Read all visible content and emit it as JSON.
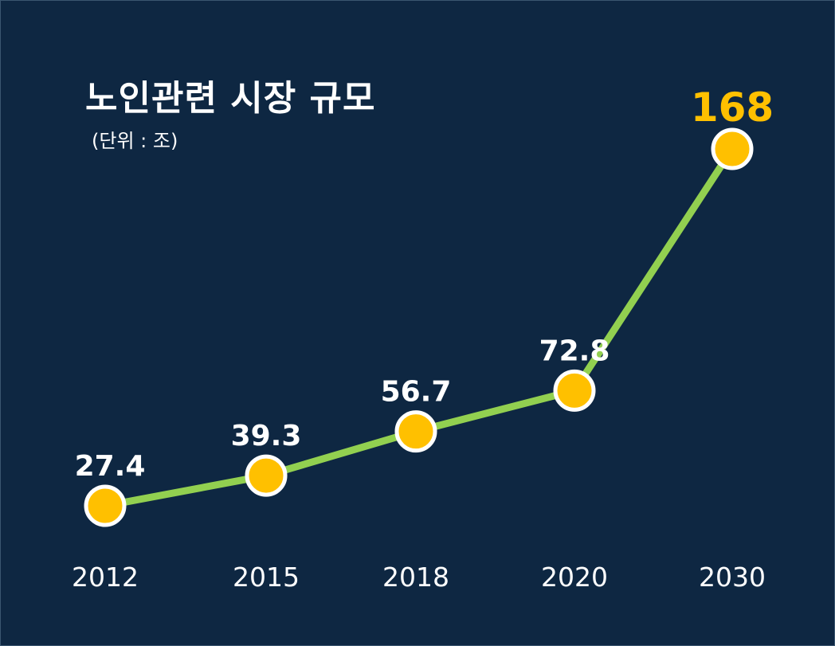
{
  "chart_data": {
    "type": "line",
    "title": "노인관련 시장 규모",
    "subtitle": "(단위 : 조)",
    "categories": [
      "2012",
      "2015",
      "2018",
      "2020",
      "2030"
    ],
    "series": [
      {
        "values": [
          27.4,
          39.3,
          56.7,
          72.8,
          168
        ]
      }
    ],
    "value_labels": [
      "27.4",
      "39.3",
      "56.7",
      "72.8",
      "168"
    ],
    "highlight_index": 4,
    "xlabel": "",
    "ylabel": "",
    "grid": false,
    "colors": {
      "background": "#0e2742",
      "line": "#92d050",
      "marker_fill": "#ffc000",
      "marker_stroke": "#ffffff",
      "label": "#ffffff",
      "highlight_label": "#ffc000"
    }
  }
}
